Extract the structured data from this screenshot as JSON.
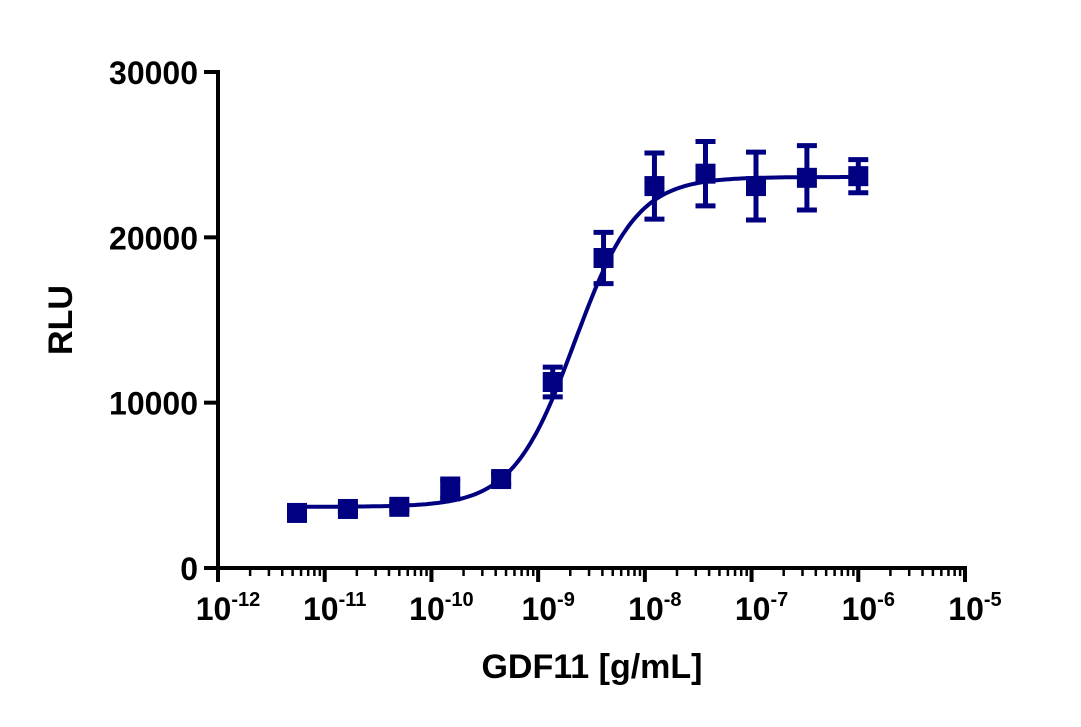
{
  "chart_data": {
    "type": "scatter",
    "xlabel": "GDF11 [g/mL]",
    "ylabel": "RLU",
    "x_scale": "log",
    "xlim": [
      1e-12,
      1e-05
    ],
    "ylim": [
      0,
      30000
    ],
    "x_ticks": [
      {
        "base": "10",
        "exp": "-12"
      },
      {
        "base": "10",
        "exp": "-11"
      },
      {
        "base": "10",
        "exp": "-10"
      },
      {
        "base": "10",
        "exp": "-9"
      },
      {
        "base": "10",
        "exp": "-8"
      },
      {
        "base": "10",
        "exp": "-7"
      },
      {
        "base": "10",
        "exp": "-6"
      },
      {
        "base": "10",
        "exp": "-5"
      }
    ],
    "y_ticks": [
      "0",
      "10000",
      "20000",
      "30000"
    ],
    "grid": false,
    "color": "#000080",
    "marker": "square",
    "series": [
      {
        "x": [
          5.5e-12,
          1.65e-11,
          5e-11,
          1.5e-10,
          4.5e-10,
          1.37e-09,
          4.1e-09,
          1.23e-08,
          3.7e-08,
          1.1e-07,
          3.3e-07,
          1e-06
        ],
        "y": [
          3330,
          3570,
          3700,
          4780,
          5380,
          11250,
          18750,
          23100,
          23850,
          23100,
          23600,
          23700
        ],
        "error": [
          200,
          200,
          200,
          600,
          300,
          900,
          1550,
          2000,
          1950,
          2050,
          1950,
          1000
        ]
      }
    ],
    "fit": {
      "model": "4PL",
      "bottom": 3700,
      "top": 23650,
      "ec50": 2.2e-09,
      "hill": 1.5
    }
  }
}
